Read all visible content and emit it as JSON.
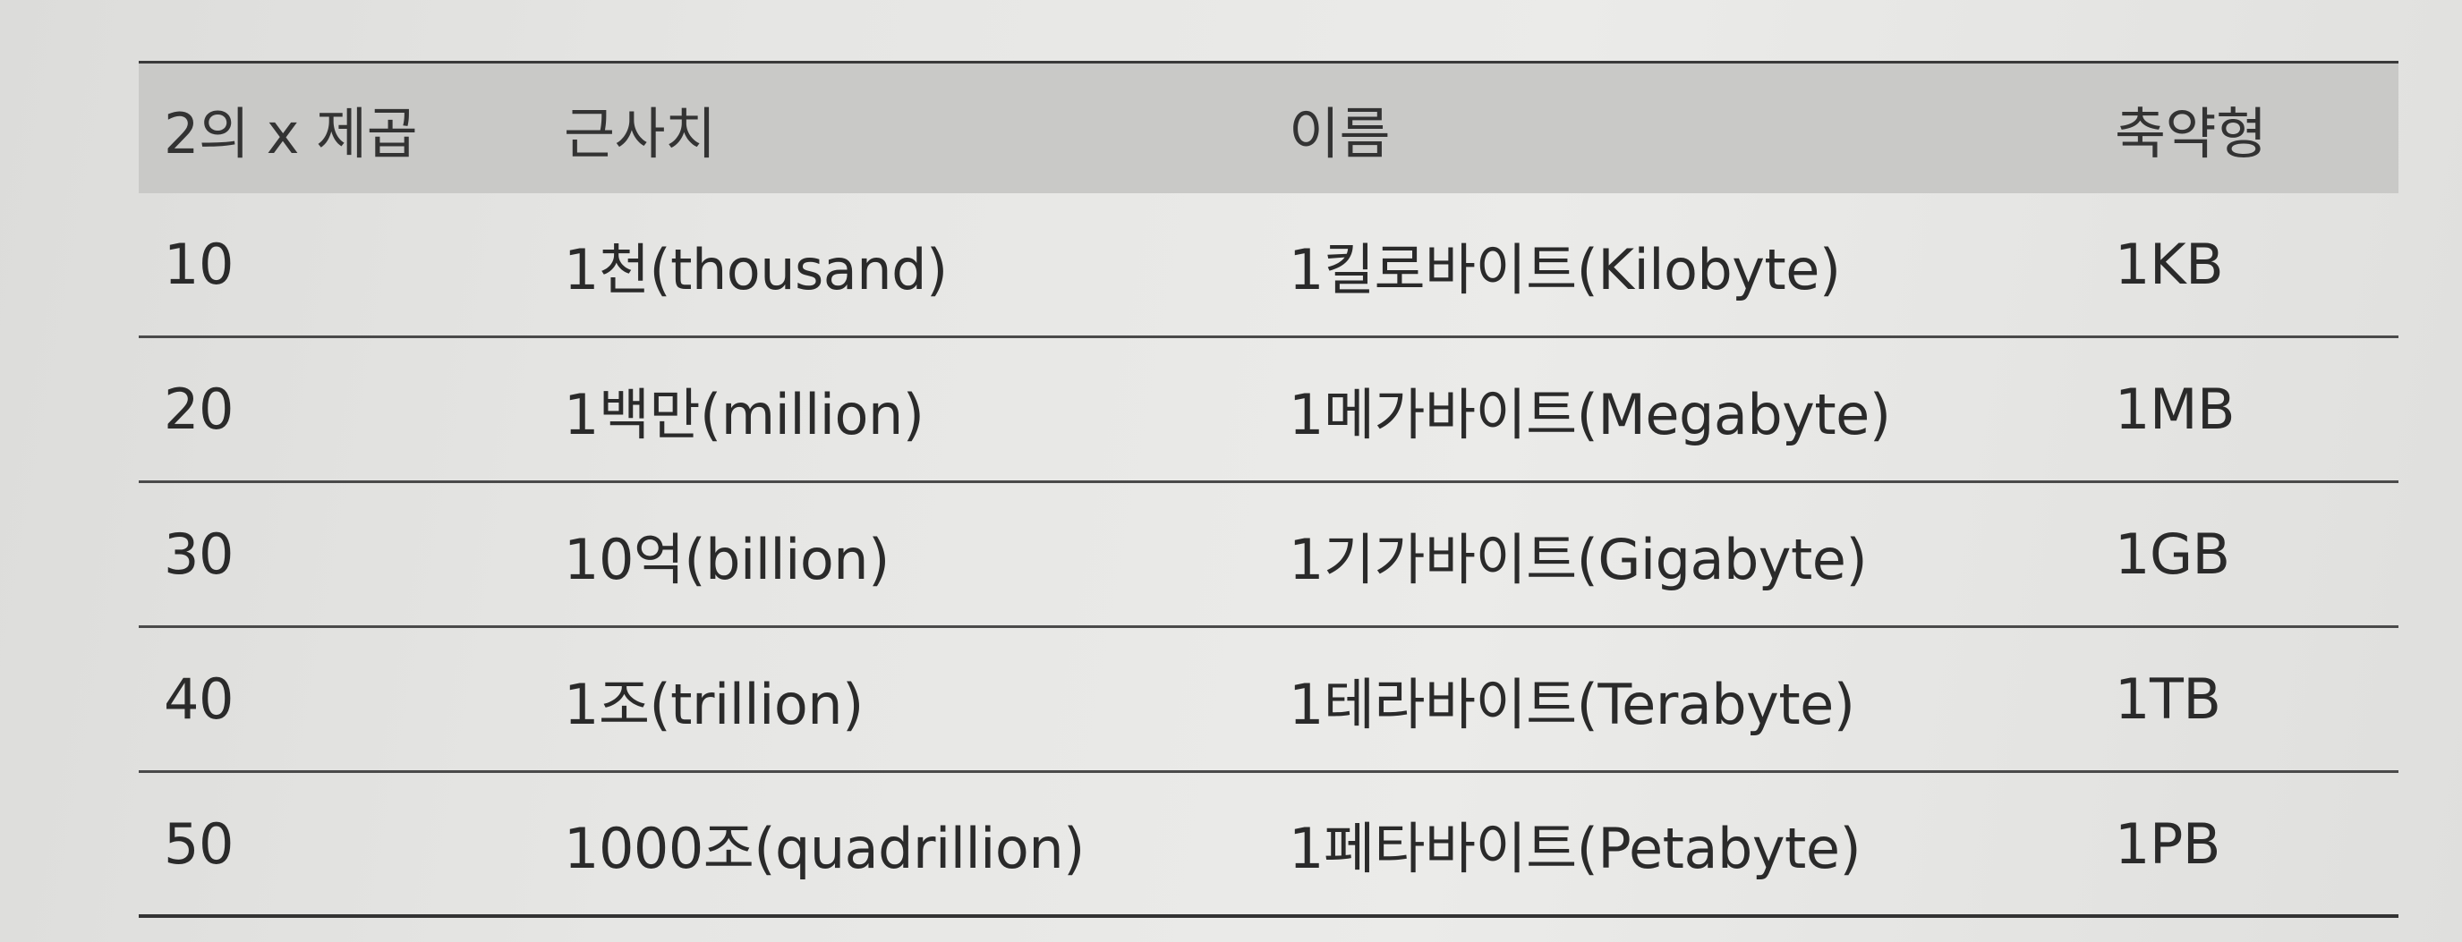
{
  "table": {
    "headers": [
      "2의 x 제곱",
      "근사치",
      "이름",
      "축약형"
    ],
    "rows": [
      [
        "10",
        "1천(thousand)",
        "1킬로바이트(Kilobyte)",
        "1KB"
      ],
      [
        "20",
        "1백만(million)",
        "1메가바이트(Megabyte)",
        "1MB"
      ],
      [
        "30",
        "10억(billion)",
        "1기가바이트(Gigabyte)",
        "1GB"
      ],
      [
        "40",
        "1조(trillion)",
        "1테라바이트(Terabyte)",
        "1TB"
      ],
      [
        "50",
        "1000조(quadrillion)",
        "1페타바이트(Petabyte)",
        "1PB"
      ]
    ]
  }
}
